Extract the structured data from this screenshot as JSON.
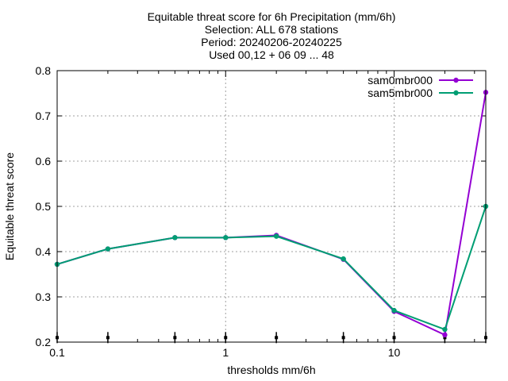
{
  "chart_data": {
    "type": "line",
    "title_lines": [
      "Equitable threat score  for 6h Precipitation (mm/6h)",
      "Selection: ALL    678 stations",
      "Period: 20240206-20240225",
      "Used 00,12 + 06 09 ... 48"
    ],
    "xlabel": "thresholds mm/6h",
    "ylabel": "Equitable threat score",
    "x_scale": "log",
    "xlim": [
      0.1,
      35
    ],
    "ylim": [
      0.2,
      0.8
    ],
    "x_ticks": [
      0.1,
      1,
      10
    ],
    "x_tick_labels": [
      "0.1",
      "1",
      "10"
    ],
    "y_ticks": [
      0.2,
      0.3,
      0.4,
      0.5,
      0.6,
      0.7,
      0.8
    ],
    "y_tick_labels": [
      "0.2",
      "0.3",
      "0.4",
      "0.5",
      "0.6",
      "0.7",
      "0.8"
    ],
    "grid": true,
    "legend_position": "top-right",
    "x": [
      0.1,
      0.2,
      0.5,
      1,
      2,
      5,
      10,
      20,
      35
    ],
    "series": [
      {
        "name": "sam0mbr000",
        "color": "#9400d3",
        "values": [
          0.372,
          0.406,
          0.431,
          0.431,
          0.436,
          0.383,
          0.268,
          0.216,
          0.752
        ]
      },
      {
        "name": "sam5mbr000",
        "color": "#009e73",
        "values": [
          0.372,
          0.406,
          0.431,
          0.431,
          0.434,
          0.384,
          0.27,
          0.228,
          0.5
        ]
      }
    ]
  }
}
